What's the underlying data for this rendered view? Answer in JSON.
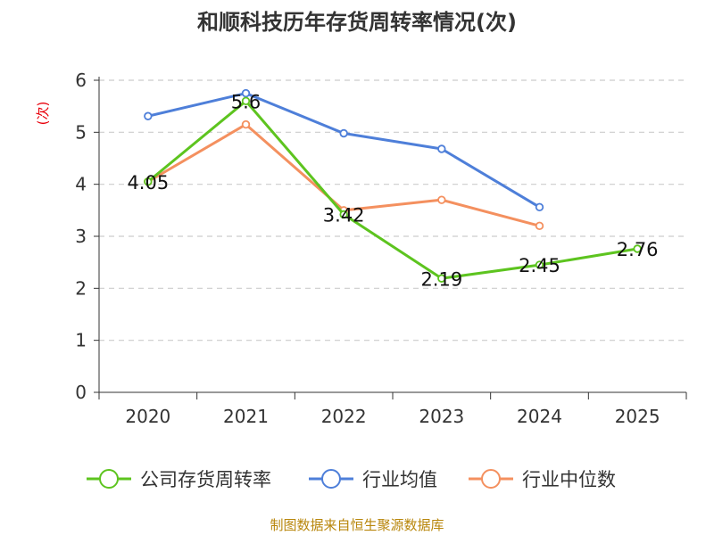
{
  "chart_data": {
    "type": "line",
    "title": "和顺科技历年存货周转率情况(次)",
    "ylabel": "(次)",
    "categories": [
      "2020",
      "2021",
      "2022",
      "2023",
      "2024",
      "2025"
    ],
    "ylim": [
      0,
      6
    ],
    "yticks": [
      "0",
      "1",
      "2",
      "3",
      "4",
      "5",
      "6"
    ],
    "grid": true,
    "legend_position": "bottom",
    "series": [
      {
        "name": "公司存货周转率",
        "color": "#5dc41f",
        "values": [
          4.05,
          5.6,
          3.42,
          2.19,
          2.45,
          2.76
        ],
        "labels": [
          "4.05",
          "5.6",
          "3.42",
          "2.19",
          "2.45",
          "2.76"
        ]
      },
      {
        "name": "行业均值",
        "color": "#4e7fd9",
        "values": [
          5.31,
          5.75,
          4.98,
          4.68,
          3.56,
          null
        ]
      },
      {
        "name": "行业中位数",
        "color": "#f4905f",
        "values": [
          4.05,
          5.15,
          3.5,
          3.7,
          3.2,
          null
        ]
      }
    ],
    "source": "制图数据来自恒生聚源数据库"
  }
}
